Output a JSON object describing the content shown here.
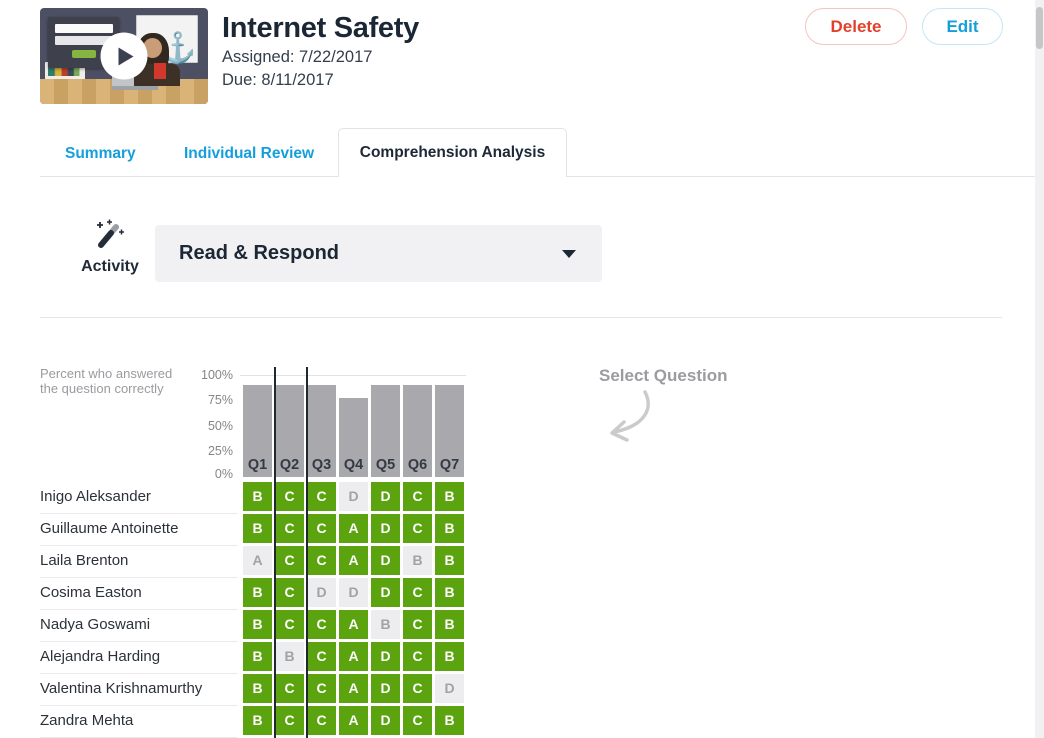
{
  "header": {
    "title": "Internet Safety",
    "assigned": "Assigned: 7/22/2017",
    "due": "Due: 8/11/2017",
    "delete_button": "Delete",
    "edit_button": "Edit"
  },
  "tabs": [
    {
      "label": "Summary",
      "active": false
    },
    {
      "label": "Individual Review",
      "active": false
    },
    {
      "label": "Comprehension Analysis",
      "active": true
    }
  ],
  "activity": {
    "label": "Activity",
    "selected_option": "Read & Respond"
  },
  "analysis": {
    "caption_line1": "Percent who answered",
    "caption_line2": "the question correctly",
    "select_hint": "Select Question"
  },
  "chart_data": {
    "type": "bar",
    "title": "Percent who answered the question correctly",
    "categories": [
      "Q1",
      "Q2",
      "Q3",
      "Q4",
      "Q5",
      "Q6",
      "Q7"
    ],
    "values": [
      90,
      90,
      90,
      77,
      90,
      90,
      90
    ],
    "yticks": [
      "100%",
      "75%",
      "50%",
      "25%",
      "0%"
    ],
    "ylim": [
      0,
      100
    ],
    "bar_color": "#a9a9ad",
    "grid": "top-line-only",
    "legend": "none",
    "highlighted_category": "Q2"
  },
  "students": [
    {
      "name": "Inigo Aleksander",
      "answers": [
        "B",
        "C",
        "C",
        "D",
        "D",
        "C",
        "B"
      ],
      "correct": [
        true,
        true,
        true,
        false,
        true,
        true,
        true
      ]
    },
    {
      "name": "Guillaume Antoinette",
      "answers": [
        "B",
        "C",
        "C",
        "A",
        "D",
        "C",
        "B"
      ],
      "correct": [
        true,
        true,
        true,
        true,
        true,
        true,
        true
      ]
    },
    {
      "name": "Laila Brenton",
      "answers": [
        "A",
        "C",
        "C",
        "A",
        "D",
        "B",
        "B"
      ],
      "correct": [
        false,
        true,
        true,
        true,
        true,
        false,
        true
      ]
    },
    {
      "name": "Cosima Easton",
      "answers": [
        "B",
        "C",
        "D",
        "D",
        "D",
        "C",
        "B"
      ],
      "correct": [
        true,
        true,
        false,
        false,
        true,
        true,
        true
      ]
    },
    {
      "name": "Nadya Goswami",
      "answers": [
        "B",
        "C",
        "C",
        "A",
        "B",
        "C",
        "B"
      ],
      "correct": [
        true,
        true,
        true,
        true,
        false,
        true,
        true
      ]
    },
    {
      "name": "Alejandra Harding",
      "answers": [
        "B",
        "B",
        "C",
        "A",
        "D",
        "C",
        "B"
      ],
      "correct": [
        true,
        false,
        true,
        true,
        true,
        true,
        true
      ]
    },
    {
      "name": "Valentina Krishnamurthy",
      "answers": [
        "B",
        "C",
        "C",
        "A",
        "D",
        "C",
        "D"
      ],
      "correct": [
        true,
        true,
        true,
        true,
        true,
        true,
        false
      ]
    },
    {
      "name": "Zandra Mehta",
      "answers": [
        "B",
        "C",
        "C",
        "A",
        "D",
        "C",
        "B"
      ],
      "correct": [
        true,
        true,
        true,
        true,
        true,
        true,
        true
      ]
    }
  ],
  "colors": {
    "correct_green": "#5ba30f",
    "incorrect_gray_bg": "#ededef",
    "bar_gray": "#a9a9ad",
    "accent_blue": "#149fdc",
    "delete_red": "#e2422c",
    "dark_navy": "#1c2736"
  }
}
